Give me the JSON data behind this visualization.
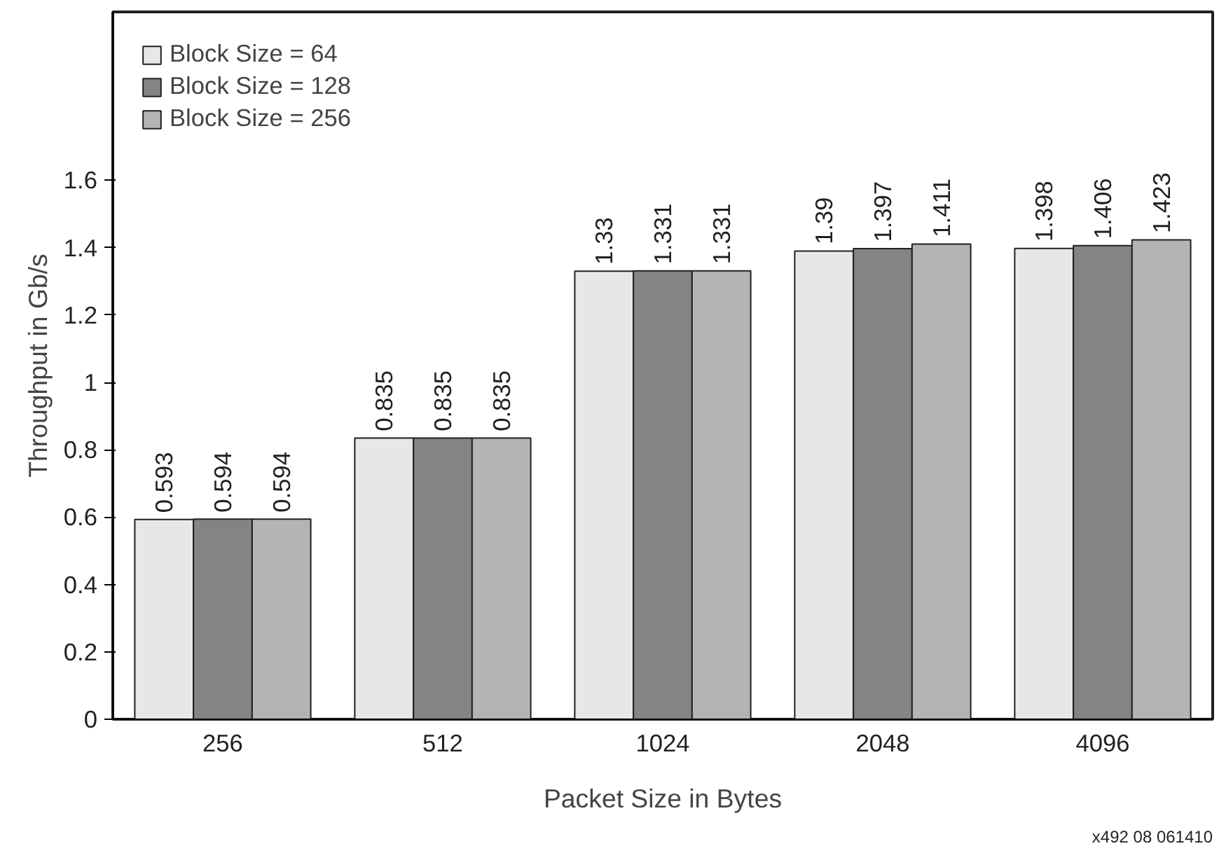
{
  "chart_data": {
    "type": "bar",
    "xlabel": "Packet Size in Bytes",
    "ylabel": "Throughput in Gb/s",
    "categories": [
      "256",
      "512",
      "1024",
      "2048",
      "4096"
    ],
    "series": [
      {
        "name": "Block Size = 64",
        "color": "#e6e7e8",
        "values": [
          0.593,
          0.835,
          1.33,
          1.39,
          1.398
        ]
      },
      {
        "name": "Block Size = 128",
        "color": "#838486",
        "values": [
          0.594,
          0.835,
          1.331,
          1.397,
          1.406
        ]
      },
      {
        "name": "Block Size = 256",
        "color": "#b3b4b6",
        "values": [
          0.594,
          0.835,
          1.331,
          1.411,
          1.423
        ]
      }
    ],
    "ylim": [
      0,
      2.1
    ],
    "yticks": [
      0,
      0.2,
      0.4,
      0.6,
      0.8,
      1,
      1.2,
      1.4,
      1.6
    ],
    "data_labels": true,
    "legend": "top left",
    "grid": false,
    "annotations": [
      "x492 08 061410"
    ]
  }
}
